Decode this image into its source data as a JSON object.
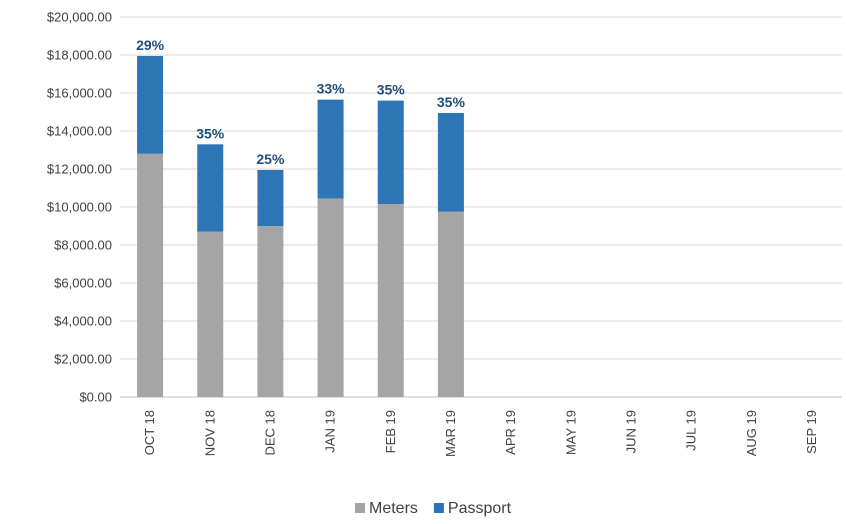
{
  "chart_data": {
    "type": "bar",
    "stacked": true,
    "categories": [
      "OCT 18",
      "NOV 18",
      "DEC 18",
      "JAN 19",
      "FEB 19",
      "MAR 19",
      "APR 19",
      "MAY 19",
      "JUN 19",
      "JUL 19",
      "AUG 19",
      "SEP 19"
    ],
    "series": [
      {
        "name": "Meters",
        "color": "#a5a5a5",
        "values": [
          12800,
          8700,
          9000,
          10450,
          10150,
          9750,
          null,
          null,
          null,
          null,
          null,
          null
        ]
      },
      {
        "name": "Passport",
        "color": "#2e75b6",
        "values": [
          5150,
          4600,
          2950,
          5200,
          5450,
          5200,
          null,
          null,
          null,
          null,
          null,
          null
        ]
      }
    ],
    "data_labels": [
      "29%",
      "35%",
      "25%",
      "33%",
      "35%",
      "35%",
      "",
      "",
      "",
      "",
      "",
      ""
    ],
    "y_ticks": [
      "$0.00",
      "$2,000.00",
      "$4,000.00",
      "$6,000.00",
      "$8,000.00",
      "$10,000.00",
      "$12,000.00",
      "$14,000.00",
      "$16,000.00",
      "$18,000.00",
      "$20,000.00"
    ],
    "ylim": [
      0,
      20000
    ],
    "grid": true,
    "legend_position": "bottom",
    "title": "",
    "xlabel": "",
    "ylabel": ""
  }
}
